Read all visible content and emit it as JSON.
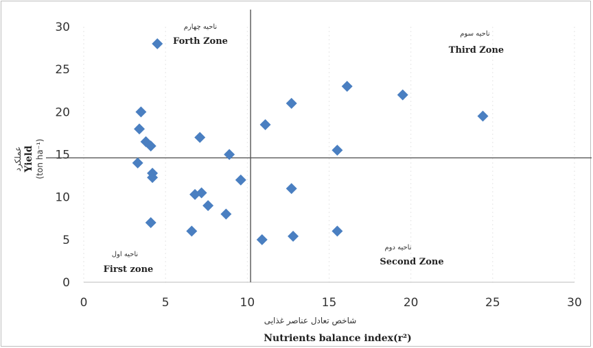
{
  "chart_data": {
    "type": "scatter",
    "x_ticks": [
      "0",
      "5",
      "10",
      "15",
      "20",
      "25",
      "30"
    ],
    "y_ticks": [
      "0",
      "5",
      "10",
      "15",
      "20",
      "25",
      "30"
    ],
    "xlim": [
      0,
      30
    ],
    "ylim": [
      0,
      30
    ],
    "xlabel": "Nutrients balance index(r²)",
    "xlabel_fa": "شاخص تعادل عناصر غذایی",
    "ylabel": "Yield",
    "ylabel_unit": "(ton ha⁻¹)",
    "ylabel_fa": "عملکرد",
    "marker_color": "#4a7fc1",
    "marker": "diamond",
    "vline_x": 10.2,
    "hline_y": 14.6,
    "points": [
      {
        "x": 4.5,
        "y": 28
      },
      {
        "x": 3.5,
        "y": 20
      },
      {
        "x": 3.4,
        "y": 18
      },
      {
        "x": 3.8,
        "y": 16.5
      },
      {
        "x": 4.1,
        "y": 16
      },
      {
        "x": 3.3,
        "y": 14
      },
      {
        "x": 4.2,
        "y": 12.8
      },
      {
        "x": 4.2,
        "y": 12.3
      },
      {
        "x": 4.1,
        "y": 7
      },
      {
        "x": 7.1,
        "y": 17
      },
      {
        "x": 8.9,
        "y": 15
      },
      {
        "x": 9.6,
        "y": 12
      },
      {
        "x": 6.8,
        "y": 10.3
      },
      {
        "x": 7.2,
        "y": 10.5
      },
      {
        "x": 7.6,
        "y": 9
      },
      {
        "x": 8.7,
        "y": 8
      },
      {
        "x": 6.6,
        "y": 6
      },
      {
        "x": 11.1,
        "y": 18.5
      },
      {
        "x": 12.7,
        "y": 21
      },
      {
        "x": 16.1,
        "y": 23
      },
      {
        "x": 19.5,
        "y": 22
      },
      {
        "x": 24.4,
        "y": 19.5
      },
      {
        "x": 15.5,
        "y": 15.5
      },
      {
        "x": 12.7,
        "y": 11
      },
      {
        "x": 10.9,
        "y": 5
      },
      {
        "x": 12.8,
        "y": 5.4
      },
      {
        "x": 15.5,
        "y": 6
      }
    ],
    "zones": [
      {
        "en": "Forth Zone",
        "fa": "ناحیه چهارم",
        "pos": "top-left"
      },
      {
        "en": "Third Zone",
        "fa": "ناحیه سوم",
        "pos": "top-right"
      },
      {
        "en": "First zone",
        "fa": "ناحیه اول",
        "pos": "bottom-left"
      },
      {
        "en": "Second Zone",
        "fa": "ناحیه دوم",
        "pos": "bottom-right"
      }
    ]
  }
}
